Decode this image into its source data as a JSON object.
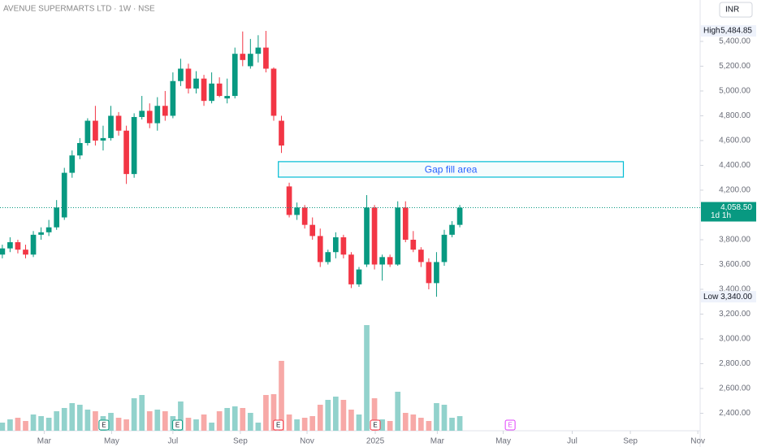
{
  "chart_data": {
    "type": "candlestick",
    "title": "AVENUE SUPERMARTS LTD · 1W · NSE",
    "currency": "INR",
    "x": [
      0,
      1,
      2,
      3,
      4,
      5,
      6,
      7,
      8,
      9,
      10,
      11,
      12,
      13,
      14,
      15,
      16,
      17,
      18,
      19,
      20,
      21,
      22,
      23,
      24,
      25,
      26,
      27,
      28,
      29,
      30,
      31,
      32,
      33,
      34,
      35,
      36,
      37,
      38,
      39,
      40,
      41,
      42,
      43,
      44,
      45,
      46,
      47,
      48,
      49,
      50,
      51,
      52,
      53,
      54,
      55,
      56,
      57,
      58,
      59
    ],
    "open": [
      3680,
      3730,
      3780,
      3720,
      3680,
      3840,
      3860,
      3900,
      3980,
      4340,
      4480,
      4580,
      4760,
      4600,
      4620,
      4800,
      4680,
      4330,
      4790,
      4840,
      4740,
      4880,
      4800,
      5080,
      5180,
      5020,
      5100,
      4920,
      5060,
      4940,
      4960,
      5300,
      5200,
      5300,
      5350,
      5180,
      4760,
      4230,
      4000,
      4060,
      3920,
      3830,
      3620,
      3700,
      3820,
      3680,
      3440,
      3600,
      4060,
      3600,
      3660,
      3600,
      4060,
      3800,
      3720,
      3620,
      3450,
      3620,
      3840,
      3920
    ],
    "high": [
      3760,
      3820,
      3800,
      3760,
      3870,
      3900,
      3960,
      4120,
      4380,
      4520,
      4620,
      4780,
      4880,
      4720,
      4880,
      4830,
      4720,
      4820,
      4960,
      4900,
      4950,
      5000,
      5150,
      5260,
      5220,
      5160,
      5130,
      5150,
      5110,
      5100,
      5350,
      5480,
      5420,
      5450,
      5484.85,
      5190,
      4800,
      4260,
      4100,
      4080,
      3980,
      3890,
      3720,
      3860,
      3840,
      3700,
      3580,
      4160,
      4080,
      3680,
      3680,
      4110,
      4110,
      3870,
      3740,
      3650,
      3700,
      3880,
      3950,
      4080
    ],
    "low": [
      3650,
      3700,
      3690,
      3650,
      3660,
      3800,
      3830,
      3880,
      3960,
      4300,
      4450,
      4560,
      4560,
      4520,
      4600,
      4640,
      4250,
      4300,
      4770,
      4700,
      4680,
      4760,
      4780,
      5040,
      4980,
      4980,
      4880,
      4900,
      4950,
      4900,
      4940,
      5200,
      5180,
      5230,
      5150,
      4760,
      4500,
      3980,
      3960,
      3890,
      3800,
      3580,
      3600,
      3650,
      3650,
      3410,
      3420,
      3580,
      3560,
      3470,
      3580,
      3590,
      3780,
      3700,
      3580,
      3400,
      3340,
      3590,
      3820,
      3900
    ],
    "close": [
      3730,
      3780,
      3720,
      3680,
      3840,
      3860,
      3900,
      4060,
      4340,
      4480,
      4580,
      4760,
      4600,
      4620,
      4800,
      4680,
      4330,
      4790,
      4840,
      4740,
      4880,
      4800,
      5080,
      5180,
      5020,
      5100,
      4920,
      5060,
      4960,
      4960,
      5300,
      5250,
      5300,
      5350,
      5180,
      4800,
      4560,
      4000,
      4060,
      3920,
      3830,
      3620,
      3700,
      3820,
      3680,
      3440,
      3560,
      4060,
      3600,
      3660,
      3600,
      4060,
      3800,
      3720,
      3620,
      3450,
      3620,
      3840,
      3920,
      4058.5
    ],
    "volume": [
      10,
      14,
      16,
      12,
      20,
      18,
      16,
      24,
      28,
      34,
      32,
      26,
      24,
      18,
      22,
      16,
      14,
      40,
      44,
      24,
      26,
      24,
      18,
      36,
      16,
      14,
      20,
      10,
      24,
      28,
      30,
      28,
      22,
      10,
      44,
      45,
      86,
      20,
      14,
      16,
      18,
      32,
      38,
      42,
      38,
      26,
      20,
      130,
      40,
      14,
      12,
      48,
      22,
      20,
      16,
      12,
      34,
      32,
      16,
      18
    ],
    "volume_lim": [
      0,
      180
    ],
    "up_color": "#089981",
    "down_color": "#f23645",
    "volume_up_color": "#92d2cc",
    "volume_down_color": "#f7a9a7",
    "xlim": [
      -0.3,
      90
    ],
    "ylim": [
      2259,
      5734
    ],
    "xticks": [
      {
        "value": 5.4,
        "label": "Mar"
      },
      {
        "value": 14.1,
        "label": "May"
      },
      {
        "value": 22.0,
        "label": "Jul"
      },
      {
        "value": 30.7,
        "label": "Sep"
      },
      {
        "value": 39.3,
        "label": "Nov"
      },
      {
        "value": 48.1,
        "label": "2025"
      },
      {
        "value": 56.1,
        "label": "Mar"
      },
      {
        "value": 64.6,
        "label": "May"
      },
      {
        "value": 73.5,
        "label": "Jul"
      },
      {
        "value": 81.0,
        "label": "Sep"
      },
      {
        "value": 89.7,
        "label": "Nov"
      }
    ],
    "yticks": [
      {
        "value": 5400,
        "label": "5,400.00"
      },
      {
        "value": 5200,
        "label": "5,200.00"
      },
      {
        "value": 5000,
        "label": "5,000.00"
      },
      {
        "value": 4800,
        "label": "4,800.00"
      },
      {
        "value": 4600,
        "label": "4,600.00"
      },
      {
        "value": 4400,
        "label": "4,400.00"
      },
      {
        "value": 4200,
        "label": "4,200.00"
      },
      {
        "value": 3800,
        "label": "3,800.00"
      },
      {
        "value": 3600,
        "label": "3,600.00"
      },
      {
        "value": 3400,
        "label": "3,400.00"
      },
      {
        "value": 3200,
        "label": "3,200.00"
      },
      {
        "value": 3000,
        "label": "3,000.00"
      },
      {
        "value": 2800,
        "label": "2,800.00"
      },
      {
        "value": 2600,
        "label": "2,600.00"
      },
      {
        "value": 2400,
        "label": "2,400.00"
      }
    ],
    "grid": false,
    "high_marker": {
      "label": "High",
      "value": 5484.85,
      "value_label": "5,484.85"
    },
    "low_marker": {
      "label": "Low",
      "value": 3340,
      "value_label": "3,340.00"
    },
    "last_price": {
      "value": 4058.5,
      "value_label": "4,058.50",
      "countdown": "1d 1h"
    },
    "annotation": {
      "text": "Gap fill area",
      "x": [
        35.6,
        80.1
      ],
      "y": [
        4305,
        4430
      ]
    },
    "earnings": {
      "label": "E",
      "x": [
        13.1,
        22.6,
        35.6,
        48.1,
        65.5
      ]
    }
  }
}
